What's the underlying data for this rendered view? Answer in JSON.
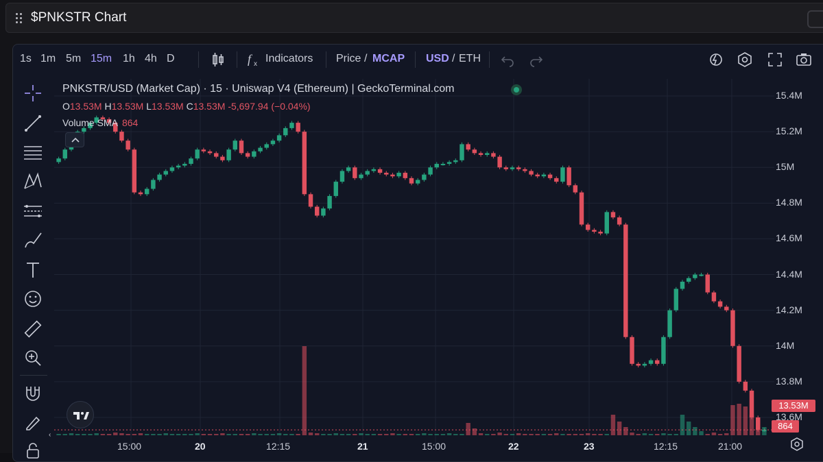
{
  "window": {
    "title": "$PNKSTR Chart"
  },
  "toolbar": {
    "intervals": [
      {
        "label": "1s",
        "active": false
      },
      {
        "label": "1m",
        "active": false
      },
      {
        "label": "5m",
        "active": false
      },
      {
        "label": "15m",
        "active": true
      },
      {
        "label": "1h",
        "active": false
      },
      {
        "label": "4h",
        "active": false
      },
      {
        "label": "D",
        "active": false
      }
    ],
    "indicators_label": "Indicators",
    "price_label": "Price",
    "slash1": "/",
    "mcap_label": "MCAP",
    "usd_label": "USD",
    "slash2": "/",
    "eth_label": "ETH"
  },
  "legend": {
    "symbol_line": "PNKSTR/USD (Market Cap) · 15 · Uniswap V4 (Ethereum) | GeckoTerminal.com",
    "o_label": "O",
    "o_value": "13.53M",
    "h_label": "H",
    "h_value": "13.53M",
    "l_label": "L",
    "l_value": "13.53M",
    "c_label": "C",
    "c_value": "13.53M",
    "change": "-5,697.94 (−0.04%)",
    "volume_label": "Volume SMA",
    "volume_value": "864"
  },
  "colors": {
    "up": "#26a37e",
    "down": "#e0505e",
    "accent": "#a79bff",
    "background": "#121624"
  },
  "chart_data": {
    "type": "candlestick",
    "y_ticks": [
      "15.4M",
      "15.2M",
      "15M",
      "14.8M",
      "14.6M",
      "14.4M",
      "14.2M",
      "14M",
      "13.8M",
      "13.6M"
    ],
    "x_ticks": [
      {
        "label": "15:00",
        "bold": false
      },
      {
        "label": "20",
        "bold": true
      },
      {
        "label": "12:15",
        "bold": false
      },
      {
        "label": "21",
        "bold": true
      },
      {
        "label": "15:00",
        "bold": false
      },
      {
        "label": "22",
        "bold": true
      },
      {
        "label": "23",
        "bold": true
      },
      {
        "label": "12:15",
        "bold": false
      },
      {
        "label": "21:00",
        "bold": false
      }
    ],
    "ylim": [
      13.5,
      15.45
    ],
    "last_price_label": "13.53M",
    "last_volume_label": "864",
    "closes": [
      15.05,
      15.1,
      15.15,
      15.2,
      15.22,
      15.25,
      15.28,
      15.27,
      15.25,
      15.2,
      15.15,
      15.1,
      14.86,
      14.85,
      14.88,
      14.93,
      14.96,
      14.98,
      15.0,
      15.01,
      15.02,
      15.05,
      15.1,
      15.09,
      15.08,
      15.06,
      15.04,
      15.1,
      15.15,
      15.08,
      15.06,
      15.09,
      15.11,
      15.13,
      15.15,
      15.18,
      15.22,
      15.25,
      15.2,
      14.85,
      14.78,
      14.73,
      14.77,
      14.84,
      14.92,
      14.98,
      15.0,
      14.94,
      14.96,
      14.98,
      14.99,
      14.97,
      14.96,
      14.95,
      14.97,
      14.94,
      14.91,
      14.93,
      14.96,
      15.0,
      15.02,
      15.02,
      15.03,
      15.04,
      15.13,
      15.1,
      15.08,
      15.07,
      15.08,
      15.06,
      15.0,
      14.99,
      15.0,
      14.99,
      14.98,
      14.96,
      14.95,
      14.96,
      14.94,
      14.92,
      15.0,
      14.9,
      14.86,
      14.68,
      14.65,
      14.64,
      14.63,
      14.75,
      14.72,
      14.68,
      14.05,
      13.9,
      13.89,
      13.9,
      13.92,
      13.9,
      14.05,
      14.2,
      14.32,
      14.36,
      14.38,
      14.4,
      14.4,
      14.3,
      14.25,
      14.22,
      14.2,
      14.0,
      13.8,
      13.75,
      13.6,
      13.53,
      13.53
    ],
    "volumes": [
      2,
      2,
      3,
      2,
      2,
      2,
      3,
      2,
      2,
      4,
      3,
      2,
      2,
      3,
      2,
      2,
      2,
      3,
      2,
      2,
      2,
      2,
      3,
      2,
      2,
      2,
      3,
      2,
      2,
      2,
      2,
      3,
      2,
      2,
      2,
      3,
      2,
      2,
      2,
      130,
      4,
      3,
      2,
      2,
      3,
      2,
      2,
      2,
      3,
      2,
      2,
      2,
      2,
      3,
      2,
      2,
      2,
      2,
      3,
      2,
      2,
      2,
      3,
      2,
      2,
      18,
      10,
      3,
      2,
      2,
      4,
      2,
      2,
      3,
      2,
      2,
      2,
      2,
      2,
      3,
      2,
      2,
      2,
      2,
      3,
      2,
      2,
      2,
      30,
      20,
      12,
      4,
      2,
      3,
      2,
      2,
      3,
      2,
      2,
      30,
      20,
      12,
      6,
      2,
      4,
      2,
      3,
      44,
      46,
      42,
      30,
      22,
      12
    ]
  }
}
